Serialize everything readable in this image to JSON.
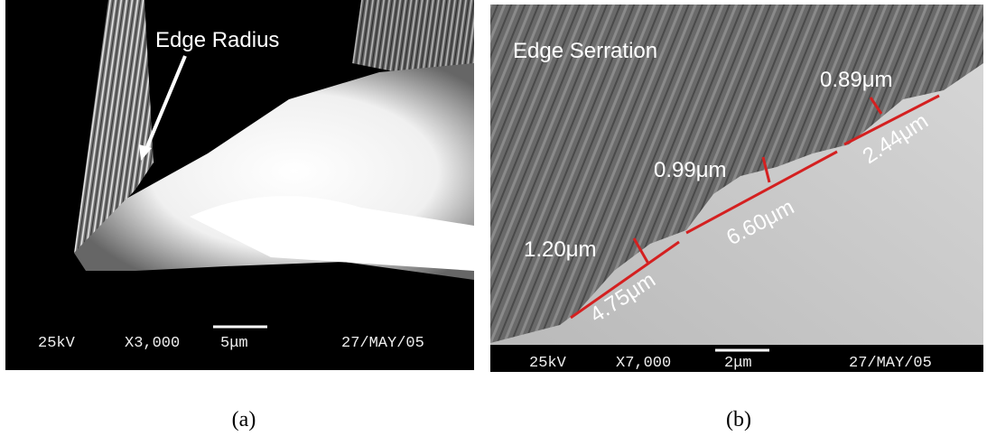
{
  "panels": [
    {
      "label": "(a)",
      "annotations": [
        "Edge Radius"
      ],
      "info_bar": {
        "voltage": "25kV",
        "magnification": "X3,000",
        "scale": "5μm",
        "date": "27/MAY/05"
      }
    },
    {
      "label": "(b)",
      "annotations": [
        "Edge Serration",
        "0.89μm",
        "2.44μm",
        "0.99μm",
        "6.60μm",
        "1.20μm",
        "4.75μm"
      ],
      "info_bar": {
        "voltage": "25kV",
        "magnification": "X7,000",
        "scale": "2μm",
        "date": "27/MAY/05"
      }
    }
  ]
}
